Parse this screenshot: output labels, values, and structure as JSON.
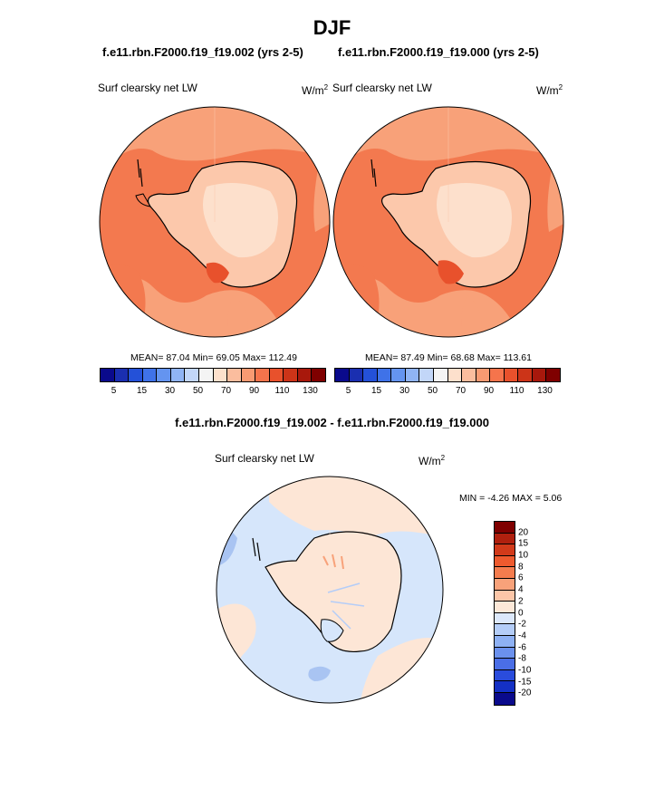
{
  "season": "DJF",
  "panels": [
    {
      "case": "f.e11.rbn.F2000.f19_f19.002 (yrs 2-5)",
      "variable": "Surf clearsky net LW",
      "units": "W/m",
      "units_exp": "2",
      "stats": "MEAN=  87.04  Min=  69.05  Max= 112.49"
    },
    {
      "case": "f.e11.rbn.F2000.f19_f19.000 (yrs 2-5)",
      "variable": "Surf clearsky net LW",
      "units": "W/m",
      "units_exp": "2",
      "stats": "MEAN=  87.49  Min=  68.68  Max= 113.61"
    }
  ],
  "abs_colorbar": {
    "colors": [
      "#0a0a8c",
      "#1a2fb0",
      "#2451d8",
      "#3f72e8",
      "#6494f0",
      "#90b4f4",
      "#c2d6f8",
      "#f4f4f4",
      "#fde0cc",
      "#fbbd9e",
      "#f89a72",
      "#f5744c",
      "#e8512c",
      "#cc3418",
      "#a8180c",
      "#7f0000"
    ],
    "tick_labels": [
      "5",
      "15",
      "30",
      "50",
      "70",
      "90",
      "110",
      "130"
    ]
  },
  "diff": {
    "title": "f.e11.rbn.F2000.f19_f19.002 - f.e11.rbn.F2000.f19_f19.000",
    "variable": "Surf clearsky net LW",
    "units": "W/m",
    "units_exp": "2",
    "minmax": "MIN =  -4.26 MAX =   5.06",
    "colorbar": {
      "colors": [
        "#7f0000",
        "#b0200e",
        "#d23a1a",
        "#ee5a2e",
        "#f47c4e",
        "#f8a27a",
        "#fcc6a8",
        "#fde8d8",
        "#dce8fb",
        "#b4cdf8",
        "#8eb1f4",
        "#6b91ee",
        "#4a6ee6",
        "#2a4cdc",
        "#1430c4",
        "#0a0a8c"
      ],
      "tick_labels": [
        "20",
        "15",
        "10",
        "8",
        "6",
        "4",
        "2",
        "0",
        "-2",
        "-4",
        "-6",
        "-8",
        "-10",
        "-15",
        "-20"
      ]
    }
  },
  "map_colors": {
    "ocean_mid": "#f3794f",
    "ocean_light": "#f8a179",
    "ice_light": "#fcc8ab",
    "ice_pale": "#fde0cc",
    "ross_hot": "#e8512c",
    "diff_blue": "#d6e6fb",
    "diff_peach": "#fde6d6",
    "diff_bluemid": "#a9c4f2"
  }
}
